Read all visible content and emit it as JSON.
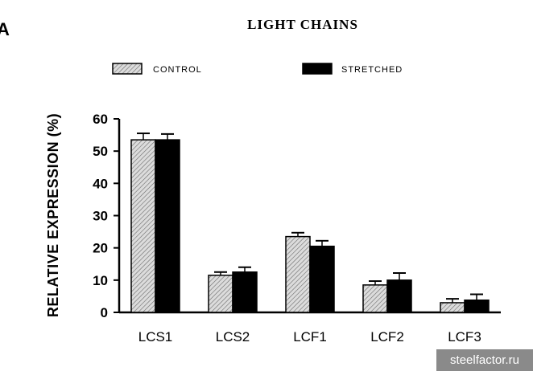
{
  "panel_label": "A",
  "chart_data": {
    "type": "bar",
    "title": "LIGHT CHAINS",
    "ylabel": "RELATIVE EXPRESSION (%)",
    "xlabel": "",
    "categories": [
      "LCS1",
      "LCS2",
      "LCF1",
      "LCF2",
      "LCF3"
    ],
    "ylim": [
      0,
      60
    ],
    "yticks": [
      0,
      10,
      20,
      30,
      40,
      50,
      60
    ],
    "grid": false,
    "legend": "top",
    "series": [
      {
        "name": "CONTROL",
        "values": [
          53.5,
          11.5,
          23.5,
          8.5,
          3.0
        ],
        "errors": [
          2.0,
          1.0,
          1.2,
          1.2,
          1.2
        ],
        "color": "#d8d8d8",
        "pattern": "hatched"
      },
      {
        "name": "STRETCHED",
        "values": [
          53.5,
          12.5,
          20.5,
          10.0,
          3.8
        ],
        "errors": [
          1.8,
          1.5,
          1.7,
          2.2,
          1.8
        ],
        "color": "#000000",
        "pattern": "solid"
      }
    ]
  },
  "watermark": "steelfactor.ru"
}
